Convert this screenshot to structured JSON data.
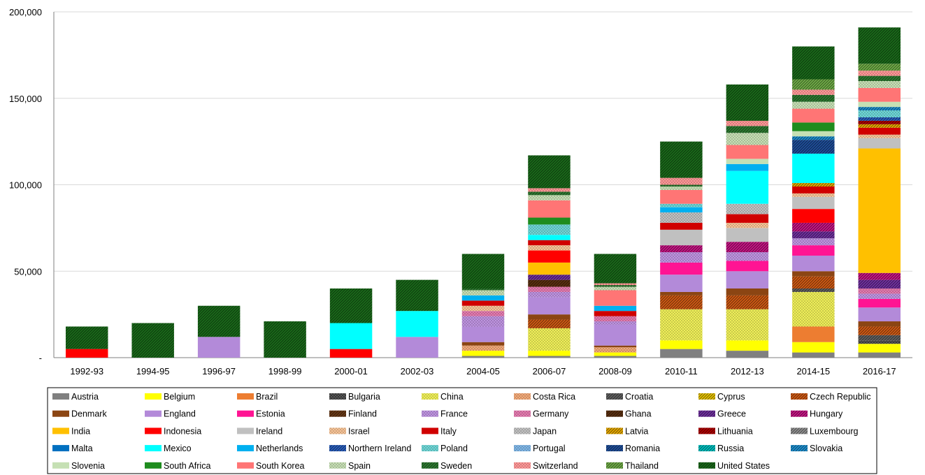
{
  "chart_data": {
    "type": "bar",
    "stacked": true,
    "categories": [
      "1992-93",
      "1994-95",
      "1996-97",
      "1998-99",
      "2000-01",
      "2002-03",
      "2004-05",
      "2006-07",
      "2008-09",
      "2010-11",
      "2012-13",
      "2014-15",
      "2016-17"
    ],
    "ylim": [
      0,
      200000
    ],
    "yticks": [
      0,
      50000,
      100000,
      150000,
      200000
    ],
    "ytick_labels": [
      "-",
      "50,000",
      "100,000",
      "150,000",
      "200,000"
    ],
    "grid": true,
    "legend_position": "bottom",
    "series": [
      {
        "name": "Austria",
        "color": "#808080",
        "pattern": "solid",
        "values": [
          0,
          0,
          0,
          0,
          0,
          0,
          1000,
          1000,
          1000,
          5000,
          4000,
          3000,
          3000
        ]
      },
      {
        "name": "Belgium",
        "color": "#ffff00",
        "pattern": "solid",
        "values": [
          0,
          0,
          0,
          0,
          0,
          0,
          3000,
          3000,
          2000,
          5000,
          6000,
          6000,
          5000
        ]
      },
      {
        "name": "Brazil",
        "color": "#ed7d31",
        "pattern": "solid",
        "values": [
          0,
          0,
          0,
          0,
          0,
          0,
          0,
          0,
          0,
          0,
          0,
          9000,
          0
        ]
      },
      {
        "name": "Bulgaria",
        "color": "#606060",
        "pattern": "cross",
        "values": [
          0,
          0,
          0,
          0,
          0,
          0,
          0,
          0,
          0,
          0,
          0,
          0,
          2000
        ]
      },
      {
        "name": "China",
        "color": "#e6e600",
        "pattern": "dots",
        "values": [
          0,
          0,
          0,
          0,
          0,
          0,
          0,
          13000,
          0,
          18000,
          18000,
          20000,
          0
        ]
      },
      {
        "name": "Costa Rica",
        "color": "#ed7d31",
        "pattern": "dots",
        "values": [
          0,
          0,
          0,
          0,
          0,
          0,
          3000,
          0,
          3000,
          0,
          0,
          0,
          0
        ]
      },
      {
        "name": "Croatia",
        "color": "#606060",
        "pattern": "diag",
        "values": [
          0,
          0,
          0,
          0,
          0,
          0,
          0,
          0,
          0,
          0,
          0,
          2000,
          3000
        ]
      },
      {
        "name": "Cyprus",
        "color": "#e6c200",
        "pattern": "diag",
        "values": [
          0,
          0,
          0,
          0,
          0,
          0,
          0,
          0,
          0,
          0,
          0,
          0,
          0
        ]
      },
      {
        "name": "Czech Republic",
        "color": "#d05a14",
        "pattern": "diag",
        "values": [
          0,
          0,
          0,
          0,
          0,
          0,
          0,
          5000,
          0,
          8000,
          8000,
          7000,
          5000
        ]
      },
      {
        "name": "Denmark",
        "color": "#8b4513",
        "pattern": "solid",
        "values": [
          0,
          0,
          0,
          0,
          0,
          0,
          2000,
          3000,
          1000,
          2000,
          4000,
          3000,
          3000
        ]
      },
      {
        "name": "England",
        "color": "#b38ad9",
        "pattern": "solid",
        "values": [
          0,
          0,
          12000,
          0,
          0,
          12000,
          9000,
          10000,
          12000,
          10000,
          10000,
          9000,
          8000
        ]
      },
      {
        "name": "Estonia",
        "color": "#ff1493",
        "pattern": "solid",
        "values": [
          0,
          0,
          0,
          0,
          0,
          0,
          0,
          0,
          0,
          7000,
          6000,
          6000,
          5000
        ]
      },
      {
        "name": "Finland",
        "color": "#6b3a16",
        "pattern": "diag",
        "values": [
          0,
          0,
          0,
          0,
          0,
          0,
          0,
          0,
          0,
          0,
          0,
          0,
          0
        ]
      },
      {
        "name": "France",
        "color": "#9b59d0",
        "pattern": "dots",
        "values": [
          0,
          0,
          0,
          0,
          0,
          0,
          6000,
          3000,
          2000,
          6000,
          5000,
          4000,
          3000
        ]
      },
      {
        "name": "Germany",
        "color": "#d63384",
        "pattern": "dots",
        "values": [
          0,
          0,
          0,
          0,
          0,
          0,
          3000,
          3000,
          3000,
          0,
          0,
          0,
          3000
        ]
      },
      {
        "name": "Ghana",
        "color": "#5c3010",
        "pattern": "diag",
        "values": [
          0,
          0,
          0,
          0,
          0,
          0,
          0,
          4000,
          0,
          0,
          0,
          0,
          0
        ]
      },
      {
        "name": "Greece",
        "color": "#7030a0",
        "pattern": "diag",
        "values": [
          0,
          0,
          0,
          0,
          0,
          0,
          0,
          3000,
          0,
          0,
          0,
          4000,
          5000
        ]
      },
      {
        "name": "Hungary",
        "color": "#c71585",
        "pattern": "diag",
        "values": [
          0,
          0,
          0,
          0,
          0,
          0,
          0,
          0,
          0,
          4000,
          6000,
          5000,
          4000
        ]
      },
      {
        "name": "India",
        "color": "#ffc000",
        "pattern": "solid",
        "values": [
          0,
          0,
          0,
          0,
          0,
          0,
          0,
          7000,
          0,
          0,
          0,
          0,
          72000
        ]
      },
      {
        "name": "Indonesia",
        "color": "#ff0000",
        "pattern": "solid",
        "values": [
          5000,
          0,
          0,
          0,
          5000,
          0,
          0,
          7000,
          0,
          0,
          0,
          8000,
          0
        ]
      },
      {
        "name": "Ireland",
        "color": "#c0c0c0",
        "pattern": "solid",
        "values": [
          0,
          0,
          0,
          0,
          0,
          0,
          0,
          0,
          0,
          9000,
          8000,
          7000,
          6000
        ]
      },
      {
        "name": "Israel",
        "color": "#f4a460",
        "pattern": "dots",
        "values": [
          0,
          0,
          0,
          0,
          0,
          0,
          3000,
          3000,
          0,
          0,
          3000,
          2000,
          2000
        ]
      },
      {
        "name": "Italy",
        "color": "#d00000",
        "pattern": "solid",
        "values": [
          0,
          0,
          0,
          0,
          0,
          0,
          3000,
          3000,
          3000,
          4000,
          5000,
          4000,
          4000
        ]
      },
      {
        "name": "Japan",
        "color": "#a0a0a0",
        "pattern": "dots",
        "values": [
          0,
          0,
          0,
          0,
          0,
          0,
          0,
          0,
          0,
          6000,
          6000,
          0,
          0
        ]
      },
      {
        "name": "Latvia",
        "color": "#e6a800",
        "pattern": "diag",
        "values": [
          0,
          0,
          0,
          0,
          0,
          0,
          0,
          0,
          0,
          0,
          0,
          2000,
          2000
        ]
      },
      {
        "name": "Lithuania",
        "color": "#b00000",
        "pattern": "diag",
        "values": [
          0,
          0,
          0,
          0,
          0,
          0,
          0,
          0,
          0,
          0,
          0,
          0,
          2000
        ]
      },
      {
        "name": "Luxembourg",
        "color": "#909090",
        "pattern": "diag",
        "values": [
          0,
          0,
          0,
          0,
          0,
          0,
          0,
          0,
          0,
          0,
          0,
          0,
          0
        ]
      },
      {
        "name": "Malta",
        "color": "#0070c0",
        "pattern": "solid",
        "values": [
          0,
          0,
          0,
          0,
          0,
          0,
          0,
          0,
          0,
          0,
          0,
          0,
          0
        ]
      },
      {
        "name": "Mexico",
        "color": "#00ffff",
        "pattern": "solid",
        "values": [
          0,
          0,
          0,
          0,
          15000,
          15000,
          0,
          3000,
          0,
          0,
          19000,
          17000,
          0
        ]
      },
      {
        "name": "Netherlands",
        "color": "#00b0f0",
        "pattern": "solid",
        "values": [
          0,
          0,
          0,
          0,
          0,
          0,
          3000,
          0,
          3000,
          3000,
          4000,
          0,
          0
        ]
      },
      {
        "name": "Northern Ireland",
        "color": "#2a5fbf",
        "pattern": "diag",
        "values": [
          0,
          0,
          0,
          0,
          0,
          0,
          0,
          0,
          0,
          0,
          0,
          0,
          2000
        ]
      },
      {
        "name": "Poland",
        "color": "#20c0c0",
        "pattern": "dots",
        "values": [
          0,
          0,
          0,
          0,
          0,
          0,
          0,
          6000,
          0,
          2000,
          0,
          0,
          4000
        ]
      },
      {
        "name": "Portugal",
        "color": "#3a8fd9",
        "pattern": "dots",
        "values": [
          0,
          0,
          0,
          0,
          0,
          0,
          0,
          0,
          0,
          0,
          0,
          0,
          0
        ]
      },
      {
        "name": "Romania",
        "color": "#1f4e9a",
        "pattern": "diag",
        "values": [
          0,
          0,
          0,
          0,
          0,
          0,
          0,
          0,
          0,
          0,
          0,
          8000,
          0
        ]
      },
      {
        "name": "Russia",
        "color": "#00c0c0",
        "pattern": "diag",
        "values": [
          0,
          0,
          0,
          0,
          0,
          0,
          0,
          0,
          0,
          0,
          0,
          0,
          0
        ]
      },
      {
        "name": "Slovakia",
        "color": "#1e90d0",
        "pattern": "diag",
        "values": [
          0,
          0,
          0,
          0,
          0,
          0,
          0,
          0,
          0,
          0,
          0,
          2000,
          2000
        ]
      },
      {
        "name": "Slovenia",
        "color": "#c5e0b4",
        "pattern": "solid",
        "values": [
          0,
          0,
          0,
          0,
          0,
          0,
          0,
          0,
          0,
          0,
          3000,
          3000,
          3000
        ]
      },
      {
        "name": "South Africa",
        "color": "#1e8c1e",
        "pattern": "solid",
        "values": [
          0,
          0,
          0,
          0,
          0,
          0,
          0,
          4000,
          0,
          0,
          0,
          5000,
          0
        ]
      },
      {
        "name": "South Korea",
        "color": "#ff7575",
        "pattern": "solid",
        "values": [
          0,
          0,
          0,
          0,
          0,
          0,
          0,
          10000,
          9000,
          8000,
          8000,
          8000,
          8000
        ]
      },
      {
        "name": "Spain",
        "color": "#a9d08e",
        "pattern": "dots",
        "values": [
          0,
          0,
          0,
          0,
          0,
          0,
          3000,
          3000,
          2000,
          2000,
          7000,
          4000,
          4000
        ]
      },
      {
        "name": "Sweden",
        "color": "#2e7d32",
        "pattern": "diag",
        "values": [
          0,
          0,
          0,
          0,
          0,
          0,
          1000,
          2000,
          1000,
          1000,
          4000,
          4000,
          3000
        ]
      },
      {
        "name": "Switzerland",
        "color": "#ff6060",
        "pattern": "dots",
        "values": [
          0,
          0,
          0,
          0,
          0,
          0,
          0,
          2000,
          1000,
          4000,
          3000,
          3000,
          3000
        ]
      },
      {
        "name": "Thailand",
        "color": "#70ad47",
        "pattern": "diag",
        "values": [
          0,
          0,
          0,
          0,
          0,
          0,
          0,
          0,
          0,
          0,
          0,
          6000,
          4000
        ]
      },
      {
        "name": "United States",
        "color": "#1a6b1a",
        "pattern": "diag",
        "values": [
          13000,
          20000,
          18000,
          21000,
          20000,
          18000,
          20000,
          19000,
          17000,
          21000,
          21000,
          19000,
          21000
        ]
      }
    ]
  }
}
